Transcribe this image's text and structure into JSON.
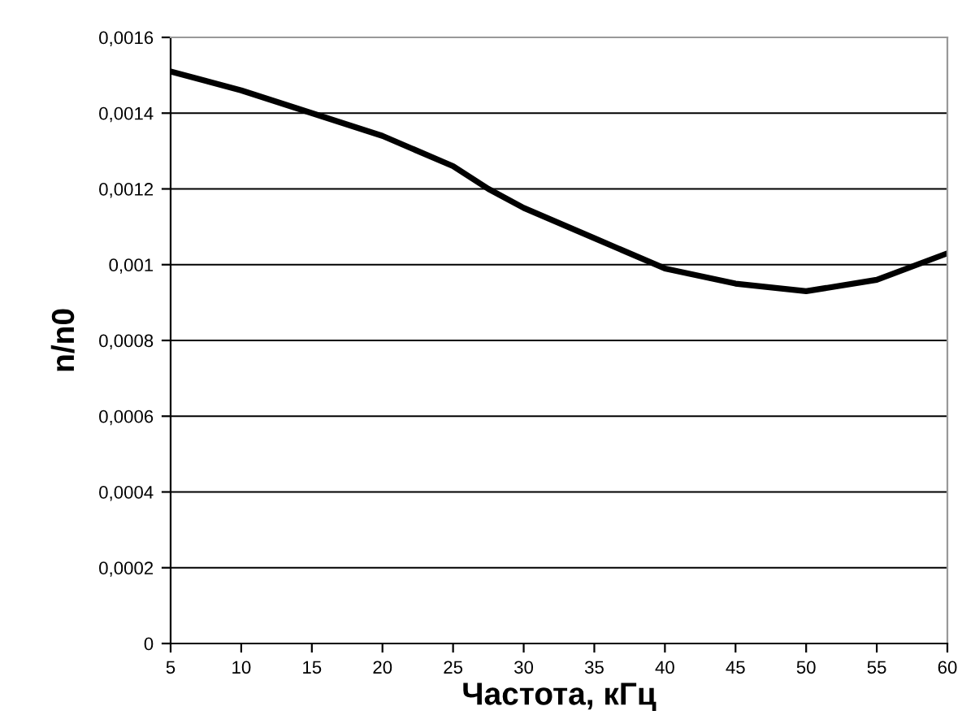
{
  "chart_data": {
    "type": "line",
    "xlabel": "Частота, кГц",
    "ylabel": "n/n0",
    "x": [
      5,
      10,
      15,
      20,
      25,
      27.5,
      30,
      35,
      40,
      45,
      50,
      55,
      60
    ],
    "series": [
      {
        "color": "#000000",
        "values": [
          0.00151,
          0.00146,
          0.0014,
          0.00134,
          0.00126,
          0.0012,
          0.00115,
          0.00107,
          0.00099,
          0.00095,
          0.00093,
          0.00096,
          0.00103
        ]
      }
    ],
    "xlim": [
      5,
      60
    ],
    "xticks": [
      5,
      10,
      15,
      20,
      25,
      30,
      35,
      40,
      45,
      50,
      55,
      60
    ],
    "ylim": [
      0,
      0.0016
    ],
    "yticks": [
      {
        "value": 0,
        "label": "0"
      },
      {
        "value": 0.0002,
        "label": "0,0002"
      },
      {
        "value": 0.0004,
        "label": "0,0004"
      },
      {
        "value": 0.0006,
        "label": "0,0006"
      },
      {
        "value": 0.0008,
        "label": "0,0008"
      },
      {
        "value": 0.001,
        "label": "0,001"
      },
      {
        "value": 0.0012,
        "label": "0,0012"
      },
      {
        "value": 0.0014,
        "label": "0,0014"
      },
      {
        "value": 0.0016,
        "label": "0,0016"
      }
    ],
    "grid": "y",
    "marker": "none",
    "line_style": "solid"
  }
}
